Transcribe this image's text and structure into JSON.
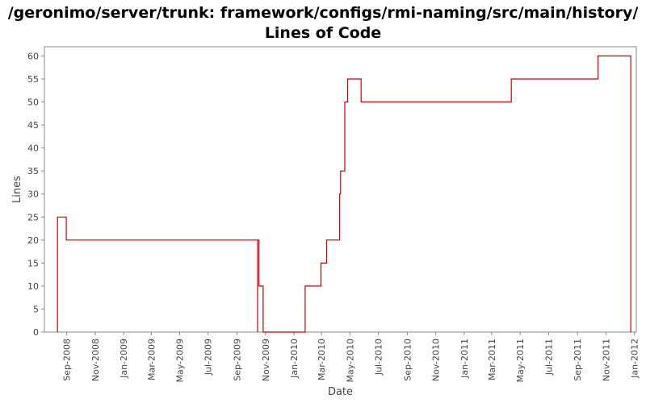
{
  "chart_data": {
    "type": "line",
    "title": "/geronimo/server/trunk: framework/configs/rmi-naming/src/main/history/",
    "subtitle": "Lines of Code",
    "xlabel": "Date",
    "ylabel": "Lines",
    "ylim": [
      0,
      62
    ],
    "xlim": [
      "2008-07-15",
      "2012-01-05"
    ],
    "yticks": [
      0,
      5,
      10,
      15,
      20,
      25,
      30,
      35,
      40,
      45,
      50,
      55,
      60
    ],
    "xticks": [
      {
        "date": "2008-09-01",
        "label": "Sep-2008"
      },
      {
        "date": "2008-11-01",
        "label": "Nov-2008"
      },
      {
        "date": "2009-01-01",
        "label": "Jan-2009"
      },
      {
        "date": "2009-03-01",
        "label": "Mar-2009"
      },
      {
        "date": "2009-05-01",
        "label": "May-2009"
      },
      {
        "date": "2009-07-01",
        "label": "Jul-2009"
      },
      {
        "date": "2009-09-01",
        "label": "Sep-2009"
      },
      {
        "date": "2009-11-01",
        "label": "Nov-2009"
      },
      {
        "date": "2010-01-01",
        "label": "Jan-2010"
      },
      {
        "date": "2010-03-01",
        "label": "Mar-2010"
      },
      {
        "date": "2010-05-01",
        "label": "May-2010"
      },
      {
        "date": "2010-07-01",
        "label": "Jul-2010"
      },
      {
        "date": "2010-09-01",
        "label": "Sep-2010"
      },
      {
        "date": "2010-11-01",
        "label": "Nov-2010"
      },
      {
        "date": "2011-01-01",
        "label": "Jan-2011"
      },
      {
        "date": "2011-03-01",
        "label": "Mar-2011"
      },
      {
        "date": "2011-05-01",
        "label": "May-2011"
      },
      {
        "date": "2011-07-01",
        "label": "Jul-2011"
      },
      {
        "date": "2011-09-01",
        "label": "Sep-2011"
      },
      {
        "date": "2011-11-01",
        "label": "Nov-2011"
      },
      {
        "date": "2012-01-01",
        "label": "Jan-2012"
      }
    ],
    "grid": false,
    "step": true,
    "series": [
      {
        "color": "#cc0000",
        "points": [
          {
            "x": "2008-08-12",
            "y": 0
          },
          {
            "x": "2008-08-12",
            "y": 25
          },
          {
            "x": "2008-08-31",
            "y": 20
          },
          {
            "x": "2009-10-15",
            "y": 0
          },
          {
            "x": "2009-10-15",
            "y": 20
          },
          {
            "x": "2009-10-18",
            "y": 10
          },
          {
            "x": "2009-10-27",
            "y": 0
          },
          {
            "x": "2010-01-25",
            "y": 10
          },
          {
            "x": "2010-02-28",
            "y": 15
          },
          {
            "x": "2010-03-12",
            "y": 20
          },
          {
            "x": "2010-04-09",
            "y": 30
          },
          {
            "x": "2010-04-11",
            "y": 35
          },
          {
            "x": "2010-04-20",
            "y": 50
          },
          {
            "x": "2010-04-26",
            "y": 55
          },
          {
            "x": "2010-05-25",
            "y": 50
          },
          {
            "x": "2011-04-12",
            "y": 55
          },
          {
            "x": "2011-10-15",
            "y": 60
          },
          {
            "x": "2011-12-24",
            "y": 0
          }
        ]
      }
    ],
    "colors": {
      "line": "#cc0000",
      "axis": "#888888",
      "plot_border": "#888888",
      "text": "#444444"
    }
  }
}
